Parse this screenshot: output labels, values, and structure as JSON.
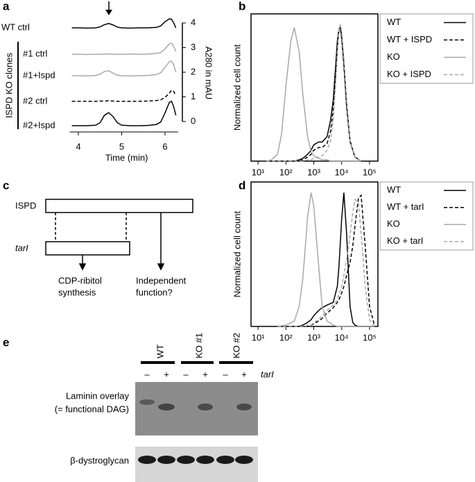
{
  "panel_labels": [
    "a",
    "b",
    "c",
    "d",
    "e"
  ],
  "chart_data": [
    {
      "type": "line",
      "xlabel": "Time (min)",
      "ylabel": "A280 in mAU",
      "group_label": "ISPD KO clones",
      "x": [
        3.85,
        4.0,
        4.2,
        4.4,
        4.5,
        4.6,
        4.7,
        4.8,
        4.9,
        5.0,
        5.2,
        5.4,
        5.6,
        5.8,
        5.9,
        6.0,
        6.1,
        6.15,
        6.2,
        6.25
      ],
      "xlim": [
        3.8,
        6.3
      ],
      "xticks": [
        4,
        5,
        6
      ],
      "ylim": [
        -0.3,
        4.3
      ],
      "yticks": [
        0,
        1,
        2,
        3,
        4
      ],
      "series": [
        {
          "name": "WT ctrl",
          "color": "#000000",
          "dashed": false,
          "values": [
            3.8,
            3.8,
            3.79,
            3.8,
            3.84,
            3.93,
            3.98,
            3.92,
            3.83,
            3.8,
            3.79,
            3.8,
            3.8,
            3.82,
            3.88,
            4.05,
            4.17,
            4.15,
            4.0,
            3.8
          ]
        },
        {
          "name": "#1 ctrl",
          "color": "#a8a8a8",
          "dashed": false,
          "values": [
            2.73,
            2.73,
            2.72,
            2.73,
            2.73,
            2.74,
            2.74,
            2.73,
            2.73,
            2.73,
            2.74,
            2.73,
            2.74,
            2.76,
            2.8,
            2.95,
            3.15,
            3.18,
            3.05,
            2.85
          ]
        },
        {
          "name": "#1+Ispd",
          "color": "#a8a8a8",
          "dashed": false,
          "values": [
            1.86,
            1.86,
            1.85,
            1.87,
            1.92,
            2.03,
            2.06,
            1.96,
            1.88,
            1.86,
            1.85,
            1.86,
            1.87,
            1.9,
            1.98,
            2.2,
            2.43,
            2.45,
            2.3,
            2.0
          ]
        },
        {
          "name": "#2 ctrl",
          "color": "#000000",
          "dashed": true,
          "values": [
            0.82,
            0.82,
            0.82,
            0.82,
            0.83,
            0.83,
            0.84,
            0.83,
            0.82,
            0.82,
            0.82,
            0.82,
            0.83,
            0.85,
            0.88,
            0.98,
            1.15,
            1.27,
            1.22,
            1.05
          ]
        },
        {
          "name": "#2+Ispd",
          "color": "#000000",
          "dashed": false,
          "values": [
            -0.17,
            -0.17,
            -0.17,
            -0.15,
            -0.05,
            0.25,
            0.36,
            0.2,
            -0.05,
            -0.15,
            -0.17,
            -0.17,
            -0.16,
            -0.12,
            -0.02,
            0.35,
            0.78,
            0.82,
            0.6,
            0.25
          ]
        }
      ]
    },
    {
      "type": "line",
      "ylabel": "Normalized cell count",
      "log_x": true,
      "x": [
        20,
        30,
        50,
        70,
        100,
        150,
        200,
        300,
        400,
        600,
        800,
        1000,
        1500,
        2000,
        3000,
        4000,
        5000,
        6000,
        7000,
        8000,
        9000,
        10000,
        12000,
        15000,
        20000,
        30000,
        50000
      ],
      "xlim": [
        5.6,
        200000
      ],
      "xticks": [
        {
          "value": 10,
          "label": "10¹"
        },
        {
          "value": 100,
          "label": "10²"
        },
        {
          "value": 1000,
          "label": "10³"
        },
        {
          "value": 10000,
          "label": "10⁴"
        },
        {
          "value": 100000,
          "label": "10⁵"
        }
      ],
      "ylim": [
        0,
        108
      ],
      "series": [
        {
          "name": "WT",
          "color": "#000000",
          "dashed": false,
          "values": [
            0,
            0,
            0,
            0,
            0,
            0,
            0,
            1,
            2,
            5,
            8,
            12,
            14,
            14,
            18,
            30,
            45,
            68,
            88,
            97,
            98,
            92,
            72,
            42,
            15,
            3,
            0
          ]
        },
        {
          "name": "WT + ISPD",
          "color": "#000000",
          "dashed": true,
          "values": [
            0,
            0,
            0,
            0,
            0,
            0,
            0,
            0,
            1,
            3,
            5,
            8,
            10,
            10,
            13,
            22,
            38,
            60,
            82,
            96,
            97,
            90,
            70,
            40,
            14,
            3,
            0
          ]
        },
        {
          "name": "KO",
          "color": "#a8a8a8",
          "dashed": false,
          "values": [
            0,
            1,
            5,
            20,
            55,
            88,
            98,
            80,
            50,
            18,
            7,
            4,
            2,
            1,
            1,
            0,
            0,
            0,
            0,
            0,
            0,
            0,
            0,
            0,
            0,
            0,
            0
          ]
        },
        {
          "name": "KO + ISPD",
          "color": "#a8a8a8",
          "dashed": true,
          "values": [
            0,
            0,
            0,
            0,
            0,
            0,
            0,
            0,
            0,
            1,
            1,
            2,
            3,
            4,
            8,
            15,
            30,
            55,
            80,
            98,
            100,
            95,
            75,
            45,
            15,
            3,
            0
          ]
        }
      ]
    },
    {
      "type": "line",
      "ylabel": "Normalized cell count",
      "log_x": true,
      "x": [
        50,
        100,
        200,
        300,
        400,
        500,
        600,
        800,
        1000,
        1500,
        2000,
        3000,
        5000,
        7000,
        8000,
        10000,
        12000,
        15000,
        20000,
        25000,
        30000,
        40000,
        50000,
        70000,
        100000,
        150000
      ],
      "xlim": [
        5.6,
        200000
      ],
      "xticks": [
        {
          "value": 10,
          "label": "10¹"
        },
        {
          "value": 100,
          "label": "10²"
        },
        {
          "value": 1000,
          "label": "10³"
        },
        {
          "value": 10000,
          "label": "10⁴"
        },
        {
          "value": 100000,
          "label": "10⁵"
        }
      ],
      "ylim": [
        0,
        108
      ],
      "series": [
        {
          "name": "WT",
          "color": "#000000",
          "dashed": false,
          "values": [
            0,
            0,
            0,
            0,
            1,
            2,
            3,
            5,
            8,
            12,
            14,
            16,
            18,
            30,
            45,
            80,
            100,
            70,
            15,
            3,
            1,
            0,
            0,
            0,
            0,
            0
          ]
        },
        {
          "name": "WT + tarI",
          "color": "#000000",
          "dashed": true,
          "values": [
            0,
            0,
            0,
            0,
            0,
            0,
            0,
            1,
            2,
            4,
            6,
            10,
            14,
            18,
            20,
            25,
            30,
            38,
            48,
            60,
            75,
            96,
            98,
            60,
            15,
            1
          ]
        },
        {
          "name": "KO",
          "color": "#a8a8a8",
          "dashed": false,
          "values": [
            0,
            1,
            4,
            15,
            35,
            60,
            82,
            100,
            90,
            45,
            15,
            4,
            1,
            0,
            0,
            0,
            0,
            0,
            0,
            0,
            0,
            0,
            0,
            0,
            0,
            0
          ]
        },
        {
          "name": "KO + tarI",
          "color": "#a8a8a8",
          "dashed": true,
          "values": [
            0,
            0,
            0,
            0,
            0,
            0,
            1,
            1,
            3,
            5,
            8,
            12,
            16,
            20,
            24,
            30,
            38,
            50,
            68,
            85,
            95,
            92,
            70,
            30,
            5,
            0
          ]
        }
      ]
    }
  ],
  "diagram": {
    "top": "ISPD",
    "bottom": "tarI",
    "outputs": [
      [
        "CDP-ribitol",
        "synthesis"
      ],
      [
        "Independent",
        "function?"
      ]
    ]
  },
  "blot": {
    "lanes": [
      "WT",
      "KO #1",
      "KO #2"
    ],
    "treatment": "tarI",
    "signs": [
      "–",
      "+",
      "–",
      "+",
      "–",
      "+"
    ],
    "rows": [
      [
        "Laminin overlay",
        "(= functional DAG)"
      ],
      [
        "β-dystroglycan"
      ]
    ]
  }
}
